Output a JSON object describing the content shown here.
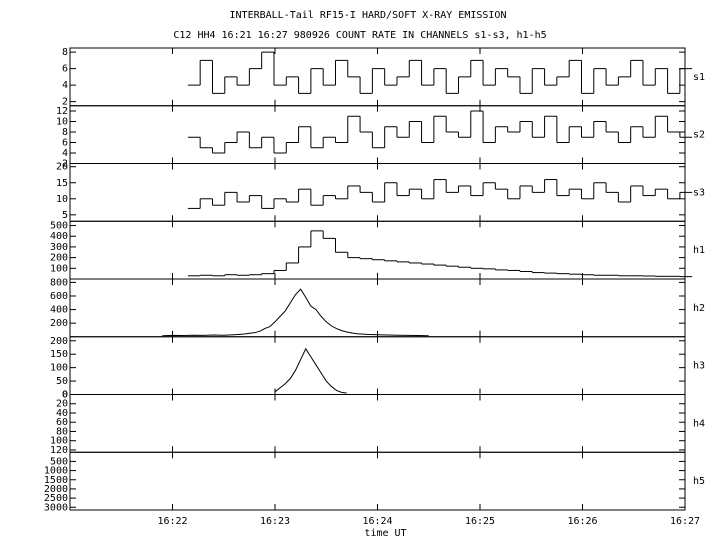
{
  "chart_data": [
    {
      "type": "line",
      "title": "INTERBALL-Tail RF15-I HARD/SOFT X-RAY EMISSION",
      "subtitle": "C12 HH4 16:21 16:27 980926  COUNT RATE IN CHANNELS s1-s3, h1-h5",
      "label": "s1",
      "step": true,
      "xlim": [
        981,
        987
      ],
      "ylim": [
        1.5,
        8.5
      ],
      "yticks": [
        2,
        4,
        6,
        8
      ],
      "x": [
        982.15,
        982.27,
        982.39,
        982.51,
        982.63,
        982.75,
        982.87,
        982.99,
        983.11,
        983.23,
        983.35,
        983.47,
        983.59,
        983.71,
        983.83,
        983.95,
        984.07,
        984.19,
        984.31,
        984.43,
        984.55,
        984.67,
        984.79,
        984.91,
        985.03,
        985.15,
        985.27,
        985.39,
        985.51,
        985.63,
        985.75,
        985.87,
        985.99,
        986.11,
        986.23,
        986.35,
        986.47,
        986.59,
        986.71,
        986.83,
        986.95
      ],
      "values": [
        4,
        7,
        3,
        5,
        4,
        6,
        8,
        4,
        5,
        3,
        6,
        4,
        7,
        5,
        3,
        6,
        4,
        5,
        7,
        4,
        6,
        3,
        5,
        7,
        4,
        6,
        5,
        3,
        6,
        4,
        5,
        7,
        3,
        6,
        4,
        5,
        7,
        4,
        6,
        3,
        6
      ]
    },
    {
      "type": "line",
      "label": "s2",
      "step": true,
      "xlim": [
        981,
        987
      ],
      "ylim": [
        2,
        13
      ],
      "yticks": [
        2,
        4,
        6,
        8,
        10,
        12
      ],
      "x": [
        982.15,
        982.27,
        982.39,
        982.51,
        982.63,
        982.75,
        982.87,
        982.99,
        983.11,
        983.23,
        983.35,
        983.47,
        983.59,
        983.71,
        983.83,
        983.95,
        984.07,
        984.19,
        984.31,
        984.43,
        984.55,
        984.67,
        984.79,
        984.91,
        985.03,
        985.15,
        985.27,
        985.39,
        985.51,
        985.63,
        985.75,
        985.87,
        985.99,
        986.11,
        986.23,
        986.35,
        986.47,
        986.59,
        986.71,
        986.83,
        986.95
      ],
      "values": [
        7,
        5,
        4,
        6,
        8,
        5,
        7,
        4,
        6,
        9,
        5,
        7,
        6,
        11,
        8,
        5,
        9,
        7,
        10,
        6,
        11,
        8,
        7,
        12,
        6,
        9,
        8,
        10,
        7,
        11,
        6,
        9,
        7,
        10,
        8,
        6,
        9,
        7,
        11,
        8,
        7
      ]
    },
    {
      "type": "line",
      "label": "s3",
      "step": true,
      "xlim": [
        981,
        987
      ],
      "ylim": [
        3,
        21
      ],
      "yticks": [
        5,
        10,
        15,
        20
      ],
      "x": [
        982.15,
        982.27,
        982.39,
        982.51,
        982.63,
        982.75,
        982.87,
        982.99,
        983.11,
        983.23,
        983.35,
        983.47,
        983.59,
        983.71,
        983.83,
        983.95,
        984.07,
        984.19,
        984.31,
        984.43,
        984.55,
        984.67,
        984.79,
        984.91,
        985.03,
        985.15,
        985.27,
        985.39,
        985.51,
        985.63,
        985.75,
        985.87,
        985.99,
        986.11,
        986.23,
        986.35,
        986.47,
        986.59,
        986.71,
        986.83,
        986.95
      ],
      "values": [
        7,
        10,
        8,
        12,
        9,
        11,
        7,
        10,
        9,
        13,
        8,
        11,
        10,
        14,
        12,
        9,
        15,
        11,
        13,
        10,
        16,
        12,
        14,
        11,
        15,
        13,
        10,
        14,
        12,
        16,
        11,
        13,
        10,
        15,
        12,
        9,
        14,
        11,
        13,
        10,
        12
      ]
    },
    {
      "type": "line",
      "label": "h1",
      "step": true,
      "xlim": [
        981,
        987
      ],
      "ylim": [
        0,
        540
      ],
      "yticks": [
        100,
        200,
        300,
        400,
        500
      ],
      "x": [
        982.15,
        982.27,
        982.39,
        982.51,
        982.63,
        982.75,
        982.87,
        982.99,
        983.11,
        983.23,
        983.35,
        983.47,
        983.59,
        983.71,
        983.83,
        983.95,
        984.07,
        984.19,
        984.31,
        984.43,
        984.55,
        984.67,
        984.79,
        984.91,
        985.03,
        985.15,
        985.27,
        985.39,
        985.51,
        985.63,
        985.75,
        985.87,
        985.99,
        986.11,
        986.23,
        986.35,
        986.47,
        986.59,
        986.71,
        986.83,
        986.95
      ],
      "values": [
        30,
        35,
        30,
        40,
        35,
        40,
        50,
        80,
        150,
        300,
        450,
        380,
        250,
        200,
        190,
        180,
        170,
        160,
        150,
        140,
        130,
        120,
        110,
        100,
        95,
        85,
        80,
        70,
        60,
        55,
        50,
        45,
        40,
        35,
        35,
        30,
        30,
        28,
        25,
        25,
        22
      ]
    },
    {
      "type": "line",
      "label": "h2",
      "step": false,
      "xlim": [
        981,
        987
      ],
      "ylim": [
        0,
        850
      ],
      "yticks": [
        200,
        400,
        600,
        800
      ],
      "x": [
        981.9,
        982.0,
        982.1,
        982.2,
        982.3,
        982.4,
        982.5,
        982.6,
        982.7,
        982.8,
        982.85,
        982.9,
        982.95,
        983.0,
        983.05,
        983.1,
        983.15,
        983.2,
        983.25,
        983.3,
        983.35,
        983.4,
        983.45,
        983.5,
        983.55,
        983.6,
        983.65,
        983.7,
        983.75,
        983.8,
        983.9,
        984.0,
        984.1,
        984.2,
        984.3,
        984.4,
        984.5
      ],
      "values": [
        15,
        20,
        18,
        22,
        20,
        25,
        22,
        30,
        40,
        60,
        80,
        120,
        150,
        220,
        300,
        380,
        500,
        620,
        700,
        580,
        450,
        400,
        300,
        220,
        160,
        120,
        90,
        70,
        55,
        45,
        35,
        30,
        25,
        22,
        20,
        18,
        15
      ]
    },
    {
      "type": "line",
      "label": "h3",
      "step": false,
      "xlim": [
        981,
        987
      ],
      "ylim": [
        0,
        215
      ],
      "yticks": [
        0,
        50,
        100,
        150,
        200
      ],
      "x": [
        983.0,
        983.05,
        983.1,
        983.15,
        983.2,
        983.25,
        983.3,
        983.35,
        983.4,
        983.45,
        983.5,
        983.55,
        983.6,
        983.65,
        983.7
      ],
      "values": [
        10,
        25,
        40,
        60,
        90,
        130,
        170,
        140,
        110,
        80,
        50,
        30,
        15,
        8,
        5
      ]
    },
    {
      "type": "line",
      "label": "h4",
      "xlim": [
        981,
        987
      ],
      "ylim": [
        125,
        0
      ],
      "yticks": [
        0,
        20,
        40,
        60,
        80,
        100,
        120
      ]
    },
    {
      "type": "line",
      "label": "h5",
      "xlim": [
        981,
        987
      ],
      "ylim": [
        3150,
        0
      ],
      "yticks": [
        500,
        1000,
        1500,
        2000,
        2500,
        3000
      ],
      "xlabel": "time UT",
      "xticks": [
        {
          "value": 982,
          "label": "16:22"
        },
        {
          "value": 983,
          "label": "16:23"
        },
        {
          "value": 984,
          "label": "16:24"
        },
        {
          "value": 985,
          "label": "16:25"
        },
        {
          "value": 986,
          "label": "16:26"
        },
        {
          "value": 987,
          "label": "16:27"
        }
      ]
    }
  ]
}
